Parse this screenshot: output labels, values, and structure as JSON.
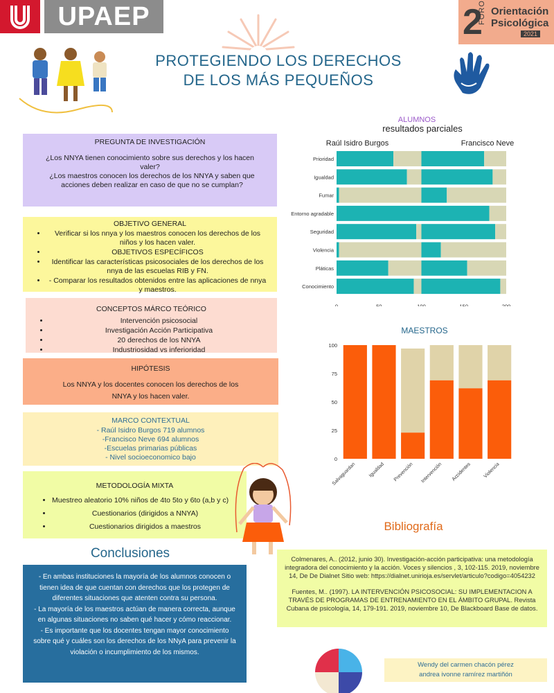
{
  "header": {
    "logo_text": "UPAEP",
    "foro": {
      "number": "2",
      "vertical": "FORO",
      "line1": "Orientación",
      "line2": "Psicológica",
      "year": "2021"
    }
  },
  "title": {
    "line1": "PROTEGIENDO LOS DERECHOS",
    "line2": "DE LOS MÁS PEQUEÑOS"
  },
  "pregunta": {
    "heading": "PREGUNTA DE INVESTIGACIÓN",
    "q1": "¿Los NNYA tienen conocimiento sobre sus derechos y los hacen valer?",
    "q2": "¿Los maestros conocen los derechos de los NNYA y saben que acciones deben realizar en caso de que no se cumplan?"
  },
  "objetivo": {
    "general_heading": "OBJETIVO GENERAL",
    "general_item": "Verificar si los nnya y los maestros conocen los derechos de los niños y los hacen valer.",
    "especificos_heading": "OBJETIVOS ESPECÍFICOS",
    "item1": "Identificar las características psicosociales de los derechos de los nnya de las escuelas RIB y FN.",
    "item2": "- Comparar los resultados obtenidos entre las aplicaciones de nnya y maestros."
  },
  "conceptos": {
    "heading": "CONCEPTOS MÁRCO TEÓRICO",
    "items": [
      "Intervención psicosocial",
      "Investigación Acción Participativa",
      "20 derechos de los NNYA",
      "Industriosidad vs inferioridad"
    ]
  },
  "hipotesis": {
    "heading": "HIPÓTESIS",
    "text": "Los NNYA y los docentes conocen los derechos de los NNYA y los hacen valer."
  },
  "marco": {
    "heading": "MARCO CONTEXTUAL",
    "lines": [
      "- Raúl Isidro Burgos 719 alumnos",
      "-Francisco Neve 694 alumnos",
      "-Escuelas primarias públicas",
      "- Nivel socioeconomico bajo"
    ]
  },
  "metodologia": {
    "heading": "METODOLOGÍA MIXTA",
    "items": [
      "Muestreo aleatorio 10% niños de 4to 5to y 6to (a,b y c)",
      "Cuestionarios (dirigidos a NNYA)",
      "Cuestionarios dirigidos a maestros"
    ]
  },
  "conclusiones": {
    "heading": "Conclusiones",
    "p1": "- En ambas instituciones la mayoría de los alumnos conocen o tienen idea de que cuentan con derechos que los protegen de diferentes situaciones que atenten contra su persona.",
    "p2": "- La mayoría de los maestros actúan de manera correcta, aunque en algunas situaciones no saben qué hacer y cómo reaccionar.",
    "p3": "-  Es importante que los docentes tengan mayor conocimiento sobre qué y cuáles son los derechos de los NNyA para prevenir la violación o incumplimiento de los mismos."
  },
  "bibliografia": {
    "heading": "Bibliografía",
    "ref1": "Colmenares, A.. (2012, junio 30). Investigación-acción participativa: una metodología integradora del conocimiento y la acción. Voces y silencios , 3, 102-115. 2019, noviembre 14, De De Dialnet Sitio web: https://dialnet.unirioja.es/servlet/articulo?codigo=4054232",
    "ref2": "Fuentes, M.. (1997). LA INTERVENCIÓN PSICOSOCIAL: SU IMPLEMENTACION A TRAVÉS DE PROGRAMAS DE ENTRENAMIENTO EN EL ÁMBITO GRUPAL. Revista Cubana de psicología, 14, 179-191. 2019, noviembre 10, De Blackboard Base de datos."
  },
  "autores": {
    "line1": "Wendy del carmen chacón pérez",
    "line2": "andrea ivonne ramírez martiñón"
  },
  "colors": {
    "teal": "#1cb3b3",
    "beige": "#d8d7b5",
    "orange": "#fb5d0a",
    "sand": "#e0d3a9",
    "title_blue": "#24668b"
  },
  "chart_data": [
    {
      "type": "bar",
      "orientation": "horizontal",
      "title": "ALUMNOS",
      "subtitle": "resultados parciales",
      "group_labels": [
        "Raúl Isidro Burgos",
        "Francisco Neve"
      ],
      "categories": [
        "Prioridad",
        "Igualdad",
        "Fumar",
        "Entorno agradable",
        "Seguridad",
        "Violencia",
        "Pláticas",
        "Conocimiento"
      ],
      "series": [
        {
          "name": "Raúl Isidro Burgos",
          "yes": [
            67,
            83,
            3,
            100,
            94,
            3,
            61,
            91
          ],
          "no": [
            33,
            17,
            97,
            0,
            6,
            97,
            39,
            9
          ]
        },
        {
          "name": "Francisco Neve",
          "yes": [
            74,
            84,
            30,
            80,
            87,
            23,
            54,
            93
          ],
          "no": [
            26,
            16,
            70,
            20,
            13,
            77,
            46,
            7
          ]
        }
      ],
      "xlim": [
        0,
        200
      ],
      "xticks": [
        0,
        50,
        100,
        150,
        200
      ]
    },
    {
      "type": "bar",
      "orientation": "vertical",
      "stacked": true,
      "title": "MAESTROS",
      "categories": [
        "Salvaguardan",
        "Igualdad",
        "Prevención",
        "Intervención",
        "Accidentes",
        "Violencia"
      ],
      "series": [
        {
          "name": "orange",
          "values": [
            100,
            100,
            23,
            69,
            62,
            69
          ]
        },
        {
          "name": "sand",
          "values": [
            0,
            0,
            74,
            31,
            38,
            31
          ]
        }
      ],
      "ylim": [
        0,
        100
      ],
      "yticks": [
        0,
        25,
        50,
        75,
        100
      ]
    }
  ]
}
